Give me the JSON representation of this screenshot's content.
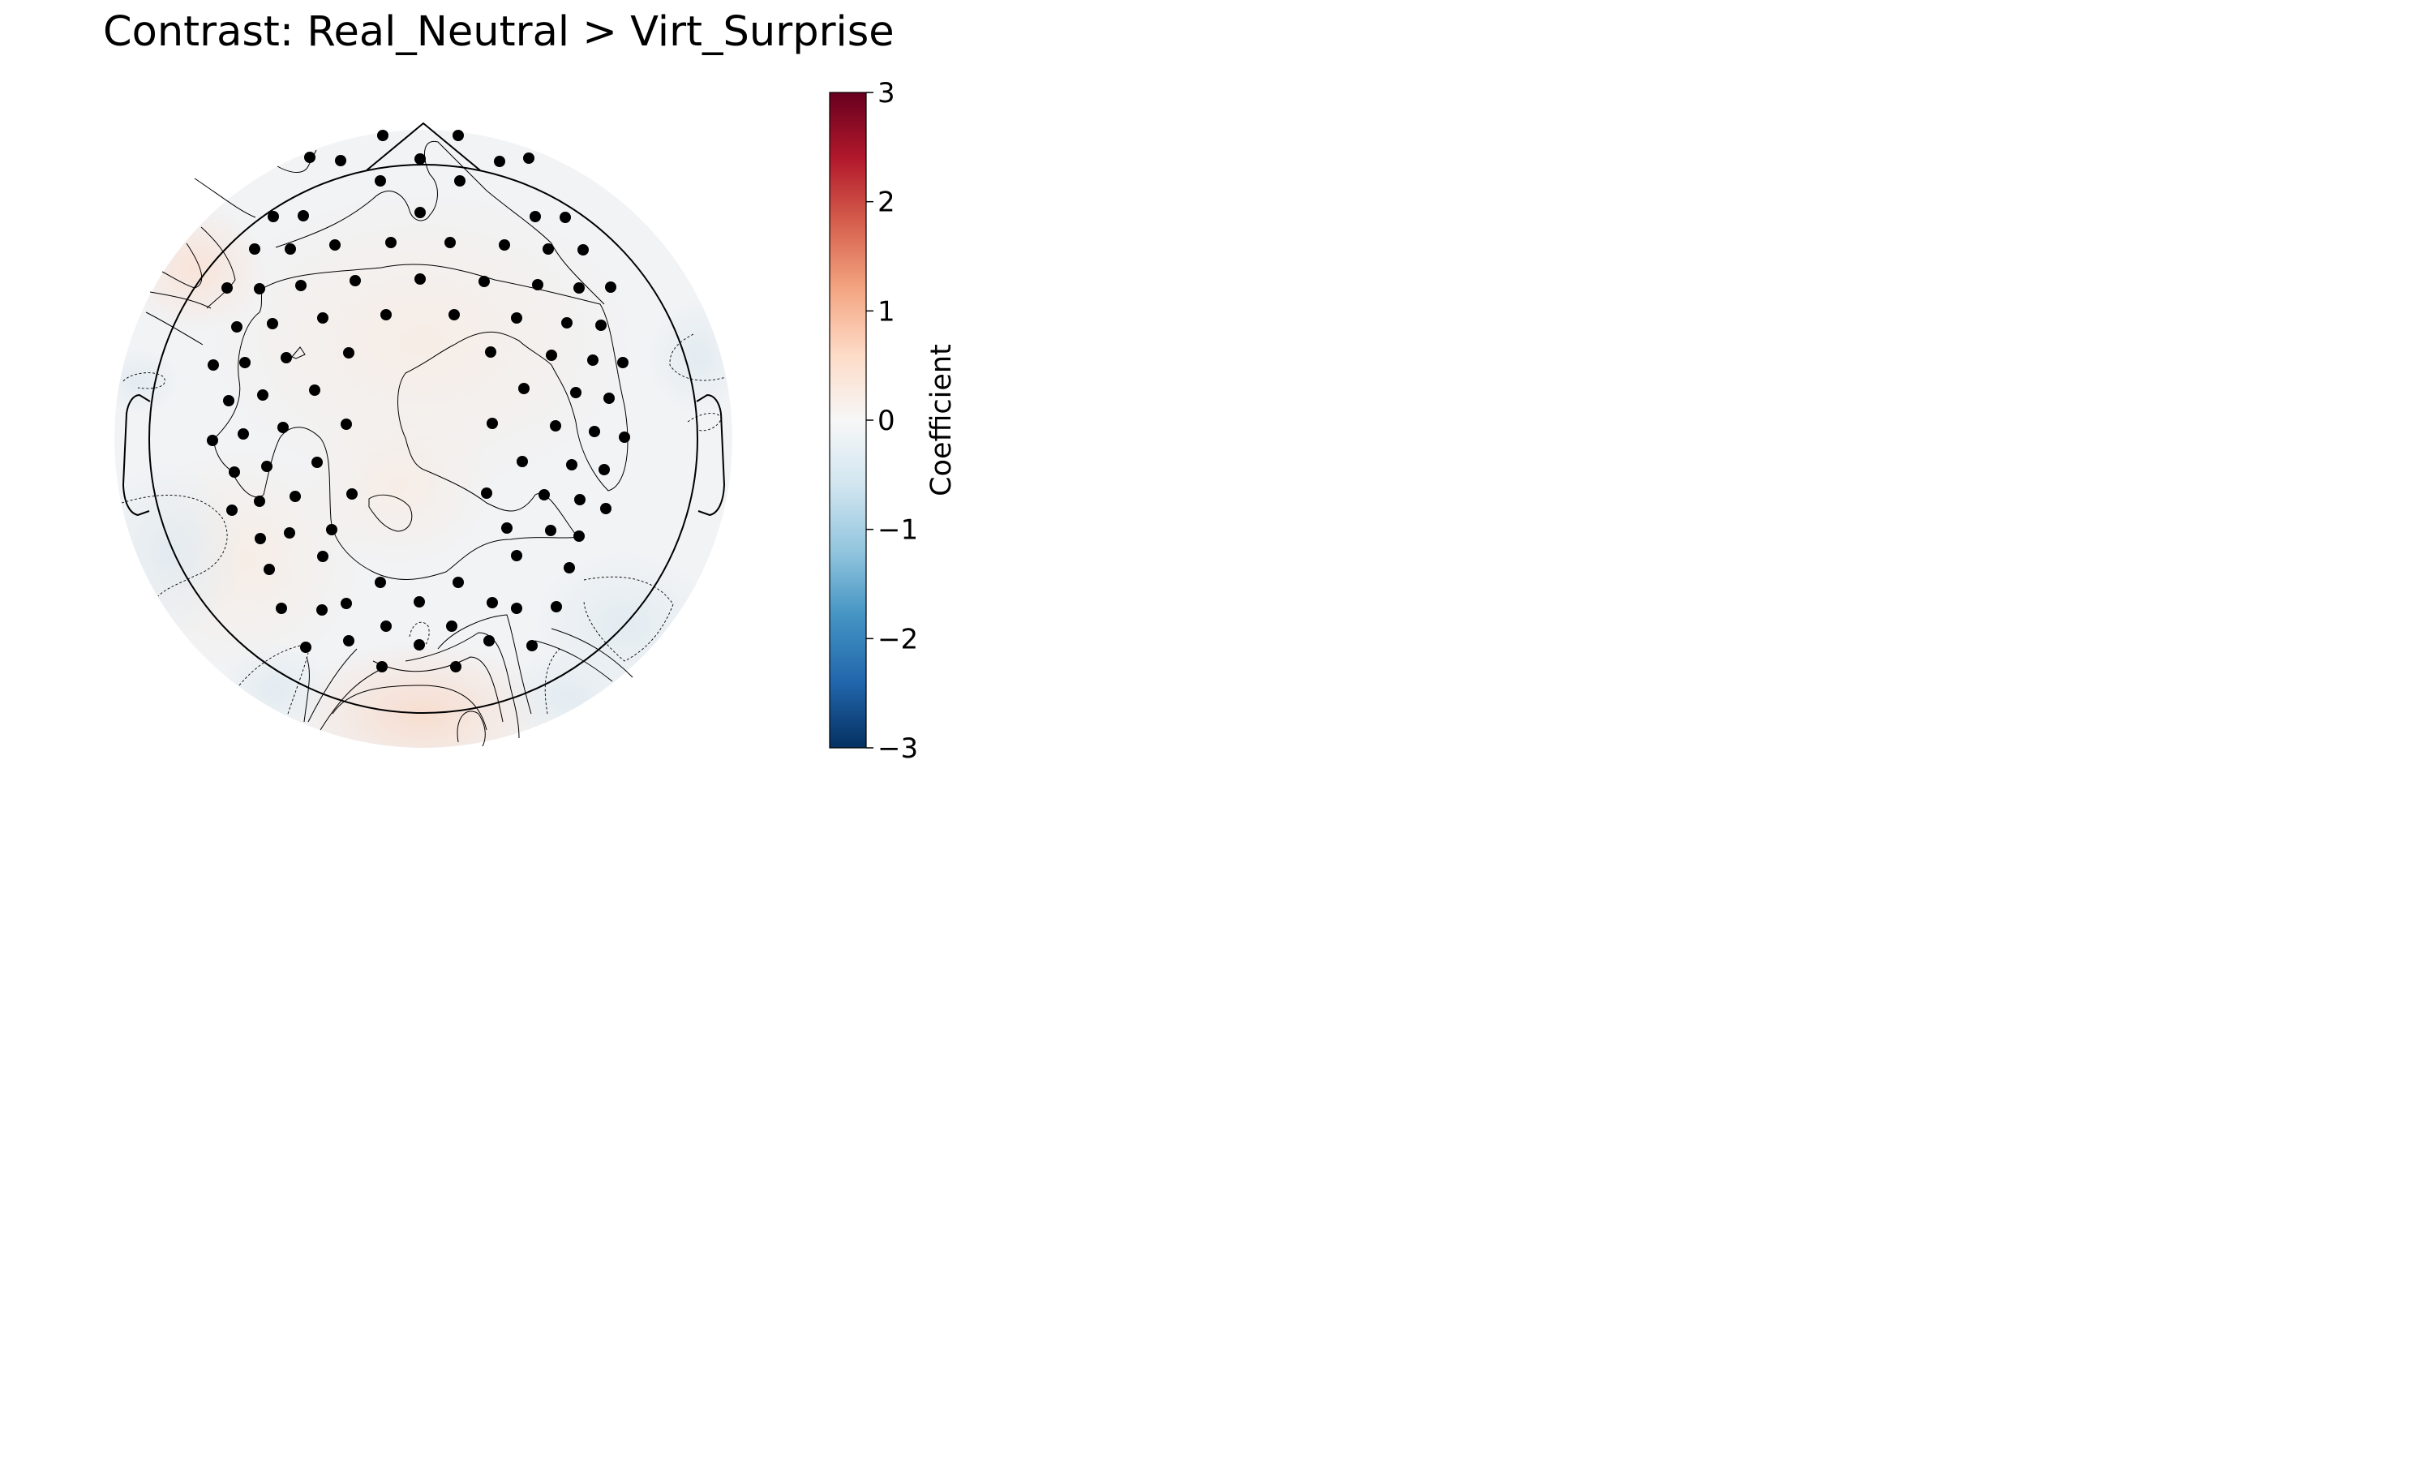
{
  "chart_data": {
    "type": "heatmap",
    "title": "Contrast: Real_Neutral > Virt_Surprise",
    "colorbar": {
      "label": "Coefficient",
      "vmin": -3,
      "vmax": 3,
      "ticks": [
        3,
        2,
        1,
        0,
        -1,
        -2,
        -3
      ],
      "tick_labels": [
        "3",
        "2",
        "1",
        "0",
        "−1",
        "−2",
        "−3"
      ],
      "colormap": "RdBu_r",
      "stops": [
        "#053061",
        "#2166ac",
        "#4393c3",
        "#92c5de",
        "#d1e5f0",
        "#f7f7f7",
        "#fddbc7",
        "#f4a582",
        "#d6604d",
        "#b2182b",
        "#67001f"
      ]
    },
    "sensors": {
      "count": 128,
      "marker_color": "#000000"
    },
    "values_observed": {
      "min_approx": -0.3,
      "max_approx": 0.5,
      "positive_regions": [
        "left frontal",
        "occipital (bottom)",
        "centro-posterior midline"
      ],
      "negative_regions": [
        "left temporal",
        "right temporal",
        "right parieto-occipital"
      ]
    }
  }
}
